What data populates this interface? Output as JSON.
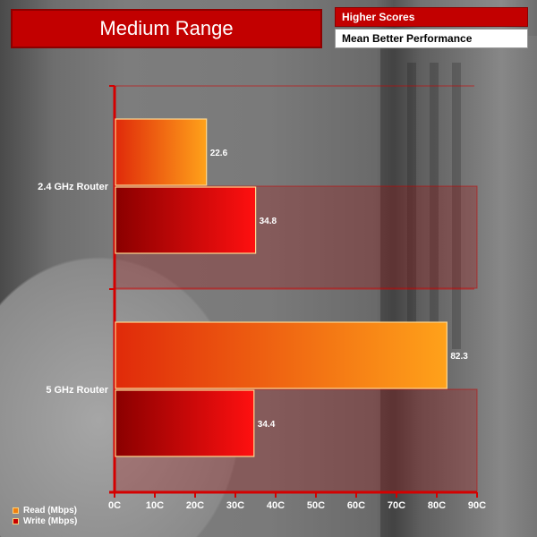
{
  "header": {
    "title": "Medium Range",
    "note_line1": "Higher Scores",
    "note_line2": "Mean Better Performance"
  },
  "chart_data": {
    "type": "bar",
    "orientation": "horizontal",
    "categories": [
      "2.4 GHz Router",
      "5 GHz Router"
    ],
    "series": [
      {
        "name": "Read (Mbps)",
        "values": [
          22.6,
          82.3
        ],
        "color": "#f08010"
      },
      {
        "name": "Write (Mbps)",
        "values": [
          34.8,
          34.4
        ],
        "color": "#c80000"
      }
    ],
    "xlim": [
      0,
      90
    ],
    "ticks": [
      "0C",
      "10C",
      "20C",
      "30C",
      "40C",
      "50C",
      "60C",
      "70C",
      "80C",
      "90C"
    ],
    "tick_values": [
      0,
      10,
      20,
      30,
      40,
      50,
      60,
      70,
      80,
      90
    ],
    "value_labels": [
      "22.6",
      "82.3",
      "34.8",
      "34.4"
    ],
    "legend_position": "bottom-left",
    "grid": false
  },
  "colors": {
    "accent": "#c20000",
    "axis": "#d40000",
    "read_light": "#ffa21a",
    "read_dark": "#e02a0a",
    "write_light": "#ff1010",
    "write_dark": "#8a0000"
  }
}
